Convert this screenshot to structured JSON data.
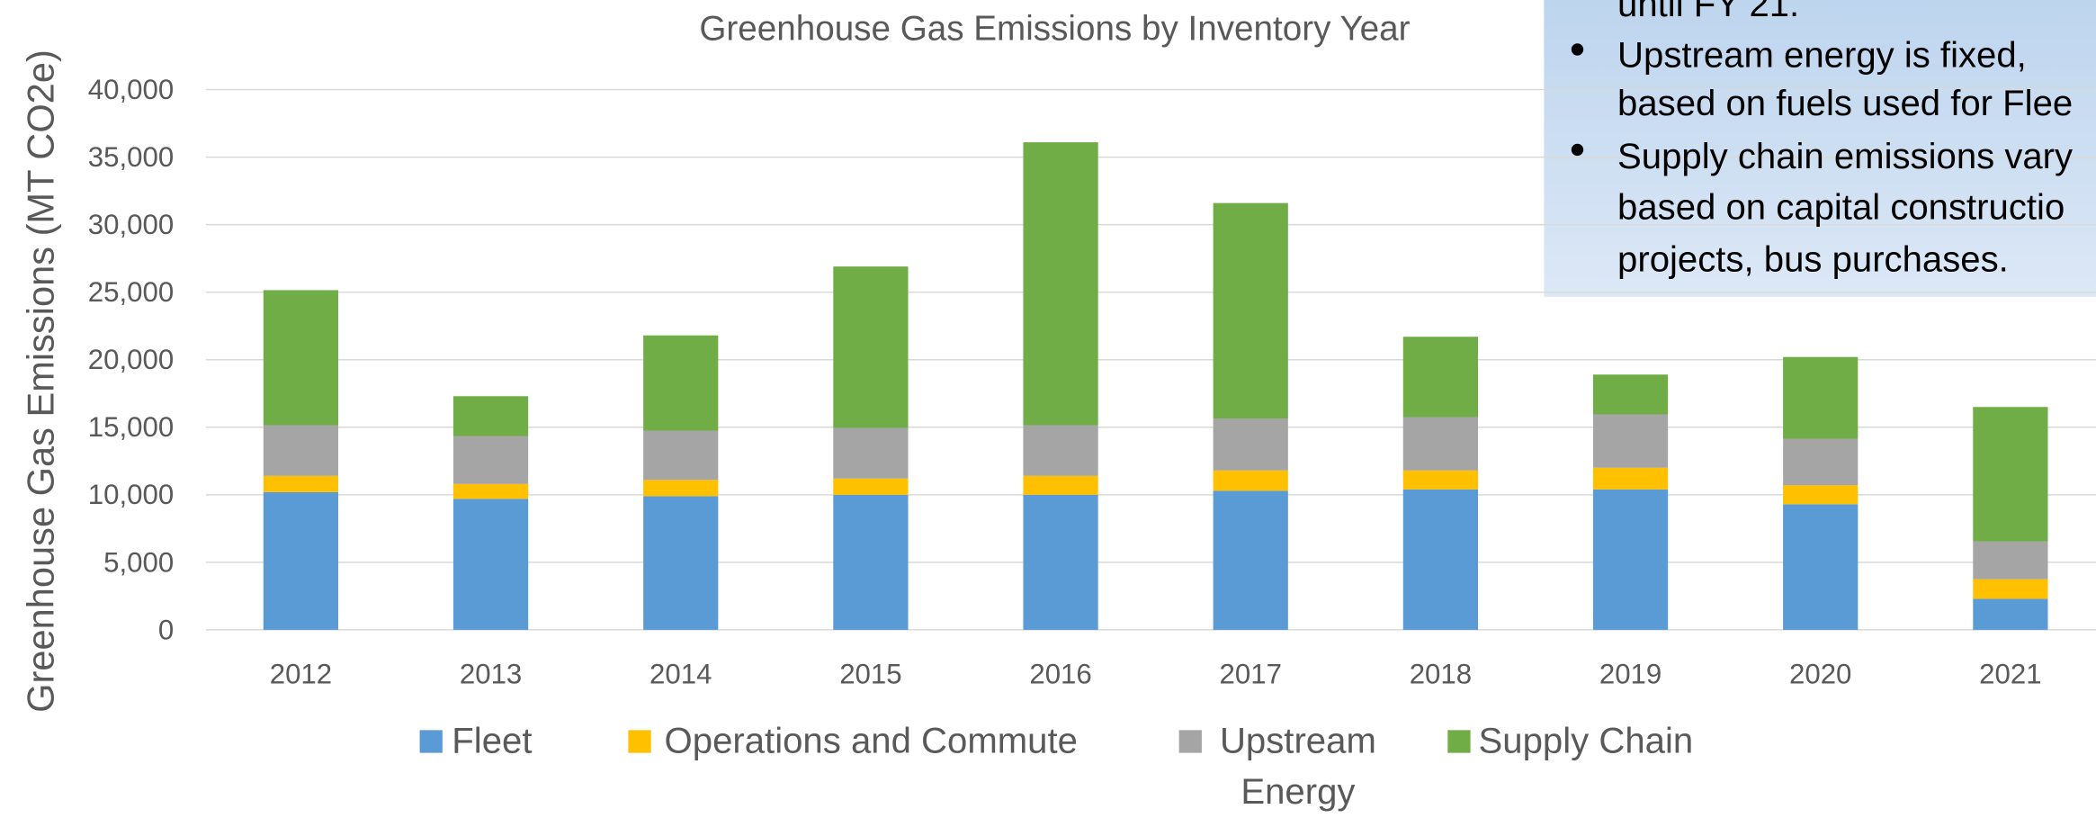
{
  "chart_data": {
    "type": "stacked_bar",
    "title": "Greenhouse Gas Emissions by Inventory Year",
    "y_axis_label": "Greenhouse Gas Emissions (MT CO2e)",
    "categories": [
      "2012",
      "2013",
      "2014",
      "2015",
      "2016",
      "2017",
      "2018",
      "2019",
      "2020",
      "2021"
    ],
    "series": [
      {
        "name": "Fleet",
        "color": "#5b9bd5",
        "values": [
          10200,
          9700,
          9900,
          10000,
          10000,
          10300,
          10400,
          10400,
          9300,
          2300
        ]
      },
      {
        "name": "Operations and Commute",
        "color": "#ffc000",
        "values": [
          1200,
          1100,
          1200,
          1200,
          1400,
          1500,
          1400,
          1600,
          1400,
          1450
        ]
      },
      {
        "name": "Upstream Energy",
        "color": "#a5a5a5",
        "values": [
          3750,
          3550,
          3650,
          3750,
          3750,
          3850,
          3950,
          3950,
          3450,
          2800
        ]
      },
      {
        "name": "Supply Chain",
        "color": "#70ad47",
        "values": [
          10000,
          2950,
          7050,
          11950,
          20950,
          15950,
          5950,
          2950,
          6050,
          9950
        ]
      }
    ],
    "ylim": [
      0,
      40000
    ],
    "yticks": [
      0,
      {
        "value": 5000,
        "label": "5,000"
      },
      {
        "value": 10000,
        "label": "10,000"
      },
      {
        "value": 15000,
        "label": "15,000"
      },
      {
        "value": 20000,
        "label": "20,000"
      },
      {
        "value": 25000,
        "label": "25,000"
      },
      {
        "value": 30000,
        "label": "30,000"
      },
      {
        "value": 35000,
        "label": "35,000"
      },
      {
        "value": 40000,
        "label": "40,000"
      }
    ],
    "grid": true,
    "legend": "bottom",
    "annotation": [
      "until FY 21.",
      "Upstream energy is fixed,",
      "based on fuels used for Flee",
      "Supply chain emissions vary",
      "based on capital constructio",
      "projects, bus purchases."
    ]
  }
}
